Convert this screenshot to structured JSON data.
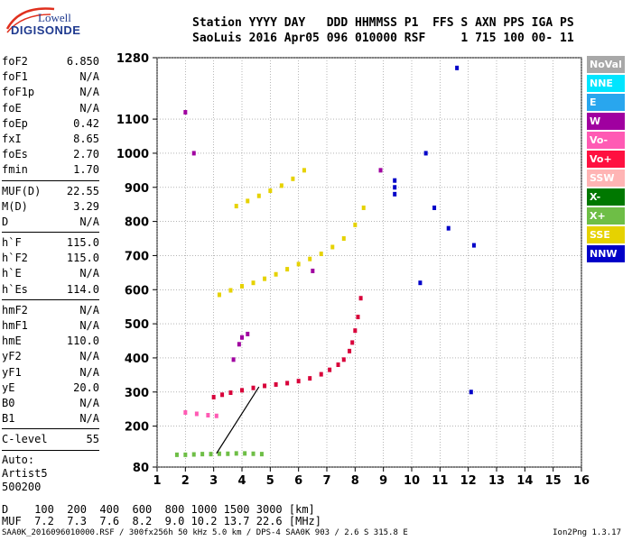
{
  "logo": {
    "line1": "Lowell",
    "line2": "DIGISONDE"
  },
  "header": {
    "line1": "Station YYYY DAY   DDD HHMMSS P1  FFS S AXN PPS IGA PS",
    "line2": "SaoLuis 2016 Apr05 096 010000 RSF     1 715 100 00- 11"
  },
  "params": {
    "group1": [
      {
        "label": "foF2",
        "value": "6.850"
      },
      {
        "label": "foF1",
        "value": "N/A"
      },
      {
        "label": "foF1p",
        "value": "N/A"
      },
      {
        "label": "foE",
        "value": "N/A"
      },
      {
        "label": "foEp",
        "value": "0.42"
      },
      {
        "label": "fxI",
        "value": "8.65"
      },
      {
        "label": "foEs",
        "value": "2.70"
      },
      {
        "label": "fmin",
        "value": "1.70"
      }
    ],
    "group2": [
      {
        "label": "MUF(D)",
        "value": "22.55"
      },
      {
        "label": "M(D)",
        "value": "3.29"
      },
      {
        "label": "D",
        "value": "N/A"
      }
    ],
    "group3": [
      {
        "label": "h`F",
        "value": "115.0"
      },
      {
        "label": "h`F2",
        "value": "115.0"
      },
      {
        "label": "h`E",
        "value": "N/A"
      },
      {
        "label": "h`Es",
        "value": "114.0"
      }
    ],
    "group4": [
      {
        "label": "hmF2",
        "value": "N/A"
      },
      {
        "label": "hmF1",
        "value": "N/A"
      },
      {
        "label": "hmE",
        "value": "110.0"
      },
      {
        "label": "yF2",
        "value": "N/A"
      },
      {
        "label": "yF1",
        "value": "N/A"
      },
      {
        "label": "yE",
        "value": "20.0"
      },
      {
        "label": "B0",
        "value": "N/A"
      },
      {
        "label": "B1",
        "value": "N/A"
      }
    ],
    "group5": [
      {
        "label": "C-level",
        "value": "55"
      }
    ],
    "auto_label": "Auto:",
    "artist": "Artist5",
    "code": "500200"
  },
  "legend": [
    {
      "label": "NoVal",
      "color": "#a8a8a8"
    },
    {
      "label": "NNE",
      "color": "#00e5ff"
    },
    {
      "label": "E",
      "color": "#29a6ee"
    },
    {
      "label": "W",
      "color": "#a000a0"
    },
    {
      "label": "Vo-",
      "color": "#ff5ab4"
    },
    {
      "label": "Vo+",
      "color": "#ff1040"
    },
    {
      "label": "SSW",
      "color": "#ffb4b4"
    },
    {
      "label": "X-",
      "color": "#007800"
    },
    {
      "label": "X+",
      "color": "#6ebe46"
    },
    {
      "label": "SSE",
      "color": "#e6d200"
    },
    {
      "label": "NNW",
      "color": "#0000c8"
    }
  ],
  "bottom_table": {
    "d_row": "D    100  200  400  600  800 1000 1500 3000 [km]",
    "muf_row": "MUF  7.2  7.3  7.6  8.2  9.0 10.2 13.7 22.6 [MHz]"
  },
  "footer": {
    "left": "SAA0K_2016096010000.RSF / 300fx256h 50 kHz 5.0 km / DPS-4 SAA0K 903 / 2.6 S 315.8 E",
    "right": "Ion2Png 1.3.17"
  },
  "chart_data": {
    "type": "scatter",
    "title": "",
    "xlabel": "",
    "ylabel": "",
    "xlim": [
      1,
      16
    ],
    "ylim": [
      80,
      1280
    ],
    "x_ticks": [
      1,
      2,
      3,
      4,
      5,
      6,
      7,
      8,
      9,
      10,
      11,
      12,
      13,
      14,
      15,
      16
    ],
    "y_ticks": [
      80,
      200,
      300,
      400,
      500,
      600,
      700,
      800,
      900,
      1000,
      1100,
      1280
    ],
    "grid": true,
    "traces": [
      {
        "name": "F-layer 1st hop",
        "color": "#d8003a",
        "x": [
          3.0,
          3.3,
          3.6,
          4.0,
          4.4,
          4.8,
          5.2,
          5.6,
          6.0,
          6.4,
          6.8,
          7.1,
          7.4,
          7.6,
          7.8,
          7.9,
          8.0,
          8.1,
          8.2
        ],
        "y": [
          285,
          292,
          298,
          305,
          312,
          318,
          322,
          326,
          332,
          340,
          352,
          365,
          380,
          395,
          420,
          445,
          480,
          520,
          575
        ]
      },
      {
        "name": "F-layer 2nd hop",
        "color": "#e6d200",
        "x": [
          3.2,
          3.6,
          4.0,
          4.4,
          4.8,
          5.2,
          5.6,
          6.0,
          6.4,
          6.8,
          7.2,
          7.6,
          8.0,
          8.3
        ],
        "y": [
          585,
          598,
          610,
          620,
          632,
          645,
          660,
          675,
          690,
          705,
          725,
          750,
          790,
          840
        ]
      },
      {
        "name": "F-layer 3rd hop",
        "color": "#e6d200",
        "x": [
          3.8,
          4.2,
          4.6,
          5.0,
          5.4,
          5.8,
          6.2
        ],
        "y": [
          845,
          860,
          875,
          890,
          905,
          925,
          950
        ]
      },
      {
        "name": "Es trace",
        "color": "#6ebe46",
        "x": [
          1.7,
          2.0,
          2.3,
          2.6,
          2.9,
          3.2,
          3.5,
          3.8,
          4.1,
          4.4,
          4.7
        ],
        "y": [
          116,
          116,
          117,
          118,
          118,
          119,
          119,
          120,
          120,
          119,
          118
        ]
      },
      {
        "name": "Es 2nd hop",
        "color": "#ff5ab4",
        "x": [
          2.0,
          2.4,
          2.8,
          3.1
        ],
        "y": [
          240,
          236,
          232,
          230
        ]
      },
      {
        "name": "Sporadic",
        "color": "#a000a0",
        "x": [
          2.0,
          2.3,
          3.9,
          4.0,
          4.2,
          3.7,
          6.5,
          8.9
        ],
        "y": [
          1120,
          1000,
          440,
          460,
          470,
          395,
          655,
          950
        ]
      },
      {
        "name": "Isolated returns",
        "color": "#0000c8",
        "x": [
          9.4,
          9.4,
          9.4,
          10.8,
          12.2,
          11.6,
          11.3,
          10.5,
          10.3,
          12.1
        ],
        "y": [
          920,
          900,
          880,
          840,
          730,
          1250,
          780,
          1000,
          620,
          300
        ]
      }
    ],
    "profile_line": {
      "color": "#000000",
      "x": [
        3.1,
        4.6
      ],
      "y": [
        120,
        315
      ]
    }
  }
}
